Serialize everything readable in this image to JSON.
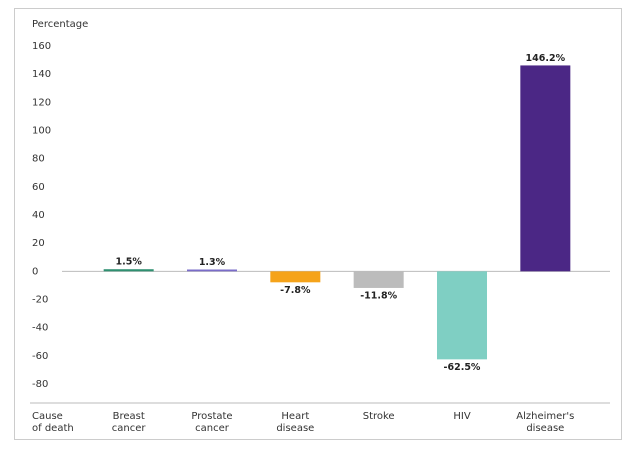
{
  "chart_data": {
    "type": "bar",
    "y_label": "Percentage",
    "x_label": "Cause\nof death",
    "categories": [
      "Breast\ncancer",
      "Prostate\ncancer",
      "Heart\ndisease",
      "Stroke",
      "HIV",
      "Alzheimer's\ndisease"
    ],
    "values": [
      1.5,
      1.3,
      -7.8,
      -11.8,
      -62.5,
      146.2
    ],
    "value_labels": [
      "1.5%",
      "1.3%",
      "-7.8%",
      "-11.8%",
      "-62.5%",
      "146.2%"
    ],
    "colors": [
      "#2f8f70",
      "#7a6cc9",
      "#f5a31a",
      "#bcbcbc",
      "#7fcfc3",
      "#4b2785"
    ],
    "ylim": [
      -80,
      160
    ],
    "yticks": [
      -80,
      -60,
      -40,
      -20,
      0,
      20,
      40,
      60,
      80,
      100,
      120,
      140,
      160
    ],
    "grid": false
  }
}
